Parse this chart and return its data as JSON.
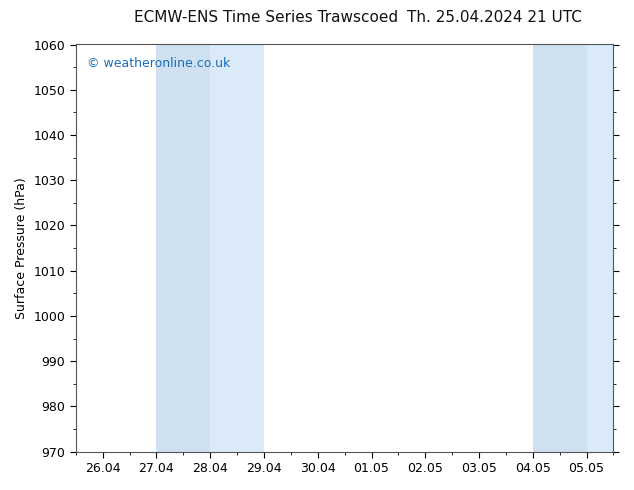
{
  "title_left": "ECMW-ENS Time Series Trawscoed",
  "title_right": "Th. 25.04.2024 21 UTC",
  "ylabel": "Surface Pressure (hPa)",
  "ylim": [
    970,
    1060
  ],
  "yticks": [
    970,
    980,
    990,
    1000,
    1010,
    1020,
    1030,
    1040,
    1050,
    1060
  ],
  "x_tick_labels": [
    "26.04",
    "27.04",
    "28.04",
    "29.04",
    "30.04",
    "01.05",
    "02.05",
    "03.05",
    "04.05",
    "05.05"
  ],
  "background_color": "#ffffff",
  "plot_bg_color": "#ffffff",
  "shaded_bands": [
    {
      "xmin": 1,
      "xmax": 2,
      "color": "#cfe0f0"
    },
    {
      "xmin": 2,
      "xmax": 3,
      "color": "#daeaf8"
    },
    {
      "xmin": 8,
      "xmax": 9,
      "color": "#cfe0f0"
    },
    {
      "xmin": 9,
      "xmax": 9.6,
      "color": "#daeaf8"
    }
  ],
  "watermark_text": "© weatheronline.co.uk",
  "watermark_color": "#1a6eb8",
  "title_fontsize": 11,
  "axis_label_fontsize": 9,
  "tick_fontsize": 9,
  "watermark_fontsize": 9,
  "border_color": "#555555"
}
